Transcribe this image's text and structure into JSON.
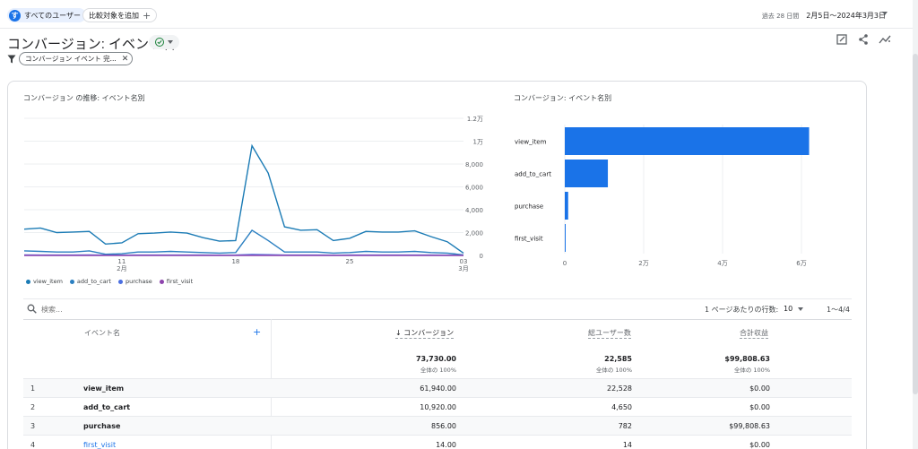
{
  "header": {
    "segment_label": "すべてのユーザー",
    "segment_avatar": "す",
    "compare_label": "比較対象を追加",
    "date_period": "過去 28 日間",
    "date_range": "2月5日～2024年3月3日"
  },
  "title": {
    "text": "コンバージョン: イベント名"
  },
  "filter": {
    "chip_label": "コンバージョン イベント 完..."
  },
  "line_chart_title": "コンバージョン の推移: イベント名別",
  "bar_chart_title": "コンバージョン: イベント名別",
  "colors": {
    "view_item": "#1b7bb5",
    "add_to_cart": "#2a7fc1",
    "purchase": "#4a6ee0",
    "first_visit": "#8e44ad",
    "bar": "#1a73e8"
  },
  "chart_data": [
    {
      "type": "line",
      "title": "コンバージョン の推移: イベント名別",
      "x_ticks": [
        {
          "day": 7,
          "label": "11",
          "sub": "2月"
        },
        {
          "day": 14,
          "label": "18",
          "sub": ""
        },
        {
          "day": 21,
          "label": "25",
          "sub": ""
        },
        {
          "day": 28,
          "label": "03",
          "sub": "3月"
        }
      ],
      "y_ticks": [
        "0",
        "2,000",
        "4,000",
        "6,000",
        "8,000",
        "1万",
        "1.2万"
      ],
      "ylim": [
        0,
        12000
      ],
      "series": [
        {
          "name": "view_item",
          "values": [
            2300,
            2400,
            2000,
            2050,
            2100,
            1000,
            1100,
            1900,
            1950,
            2050,
            1950,
            1550,
            1250,
            1300,
            9600,
            7200,
            2500,
            2200,
            2250,
            1300,
            1500,
            2100,
            2050,
            2050,
            2150,
            1650,
            1200,
            200
          ]
        },
        {
          "name": "add_to_cart",
          "values": [
            400,
            350,
            300,
            300,
            400,
            100,
            150,
            300,
            300,
            350,
            300,
            250,
            200,
            250,
            2200,
            1300,
            300,
            300,
            300,
            200,
            250,
            350,
            300,
            300,
            350,
            250,
            200,
            50
          ]
        },
        {
          "name": "purchase",
          "values": [
            40,
            30,
            30,
            30,
            40,
            20,
            20,
            30,
            30,
            30,
            30,
            30,
            20,
            30,
            90,
            60,
            30,
            30,
            30,
            20,
            30,
            30,
            30,
            30,
            30,
            30,
            20,
            10
          ]
        },
        {
          "name": "first_visit",
          "values": [
            0,
            1,
            0,
            1,
            0,
            0,
            1,
            0,
            1,
            0,
            1,
            0,
            0,
            1,
            2,
            1,
            0,
            1,
            0,
            0,
            1,
            0,
            1,
            0,
            1,
            0,
            1,
            0
          ]
        }
      ],
      "legend": "bottom-left"
    },
    {
      "type": "bar",
      "orientation": "horizontal",
      "title": "コンバージョン: イベント名別",
      "categories": [
        "view_item",
        "add_to_cart",
        "purchase",
        "first_visit"
      ],
      "values": [
        61940,
        10920,
        856,
        14
      ],
      "x_ticks": [
        "0",
        "2万",
        "4万",
        "6万"
      ],
      "xlim": [
        0,
        62500
      ]
    }
  ],
  "table": {
    "search_placeholder": "検索...",
    "rows_per_page_label": "1 ページあたりの行数:",
    "rows_per_page_value": "10",
    "pagination": "1～4/4",
    "columns": {
      "event_name": "イベント名",
      "conversions": "↓ コンバージョン",
      "total_users": "総ユーザー数",
      "total_revenue": "合計収益"
    },
    "totals": {
      "conversions": "73,730.00",
      "total_users": "22,585",
      "total_revenue": "$99,808.63",
      "sub": "全体の 100%"
    },
    "rows": [
      {
        "idx": "1",
        "name": "view_item",
        "conversions": "61,940.00",
        "users": "22,528",
        "revenue": "$0.00"
      },
      {
        "idx": "2",
        "name": "add_to_cart",
        "conversions": "10,920.00",
        "users": "4,650",
        "revenue": "$0.00"
      },
      {
        "idx": "3",
        "name": "purchase",
        "conversions": "856.00",
        "users": "782",
        "revenue": "$99,808.63"
      },
      {
        "idx": "4",
        "name": "first_visit",
        "conversions": "14.00",
        "users": "14",
        "revenue": "$0.00"
      }
    ]
  }
}
